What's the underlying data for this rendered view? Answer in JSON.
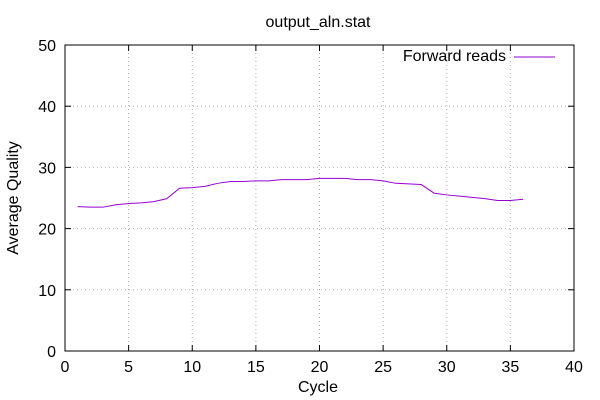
{
  "chart_data": {
    "type": "line",
    "title": "output_aln.stat",
    "xlabel": "Cycle",
    "ylabel": "Average Quality",
    "xlim": [
      0,
      40
    ],
    "ylim": [
      0,
      50
    ],
    "xticks": [
      "0",
      "5",
      "10",
      "15",
      "20",
      "25",
      "30",
      "35",
      "40"
    ],
    "yticks": [
      "0",
      "10",
      "20",
      "30",
      "40",
      "50"
    ],
    "grid": true,
    "legend_position": "top-right",
    "series": [
      {
        "name": "Forward reads",
        "color": "#9400d3",
        "x": [
          1,
          2,
          3,
          4,
          5,
          6,
          7,
          8,
          9,
          10,
          11,
          12,
          13,
          14,
          15,
          16,
          17,
          18,
          19,
          20,
          21,
          22,
          23,
          24,
          25,
          26,
          27,
          28,
          29,
          30,
          31,
          32,
          33,
          34,
          35,
          36
        ],
        "y": [
          23.6,
          23.5,
          23.5,
          23.9,
          24.1,
          24.2,
          24.4,
          24.9,
          26.6,
          26.7,
          26.9,
          27.4,
          27.7,
          27.7,
          27.8,
          27.8,
          28.0,
          28.0,
          28.0,
          28.2,
          28.2,
          28.2,
          28.0,
          28.0,
          27.8,
          27.4,
          27.3,
          27.2,
          25.8,
          25.5,
          25.3,
          25.1,
          24.9,
          24.6,
          24.6,
          24.8
        ]
      }
    ]
  }
}
